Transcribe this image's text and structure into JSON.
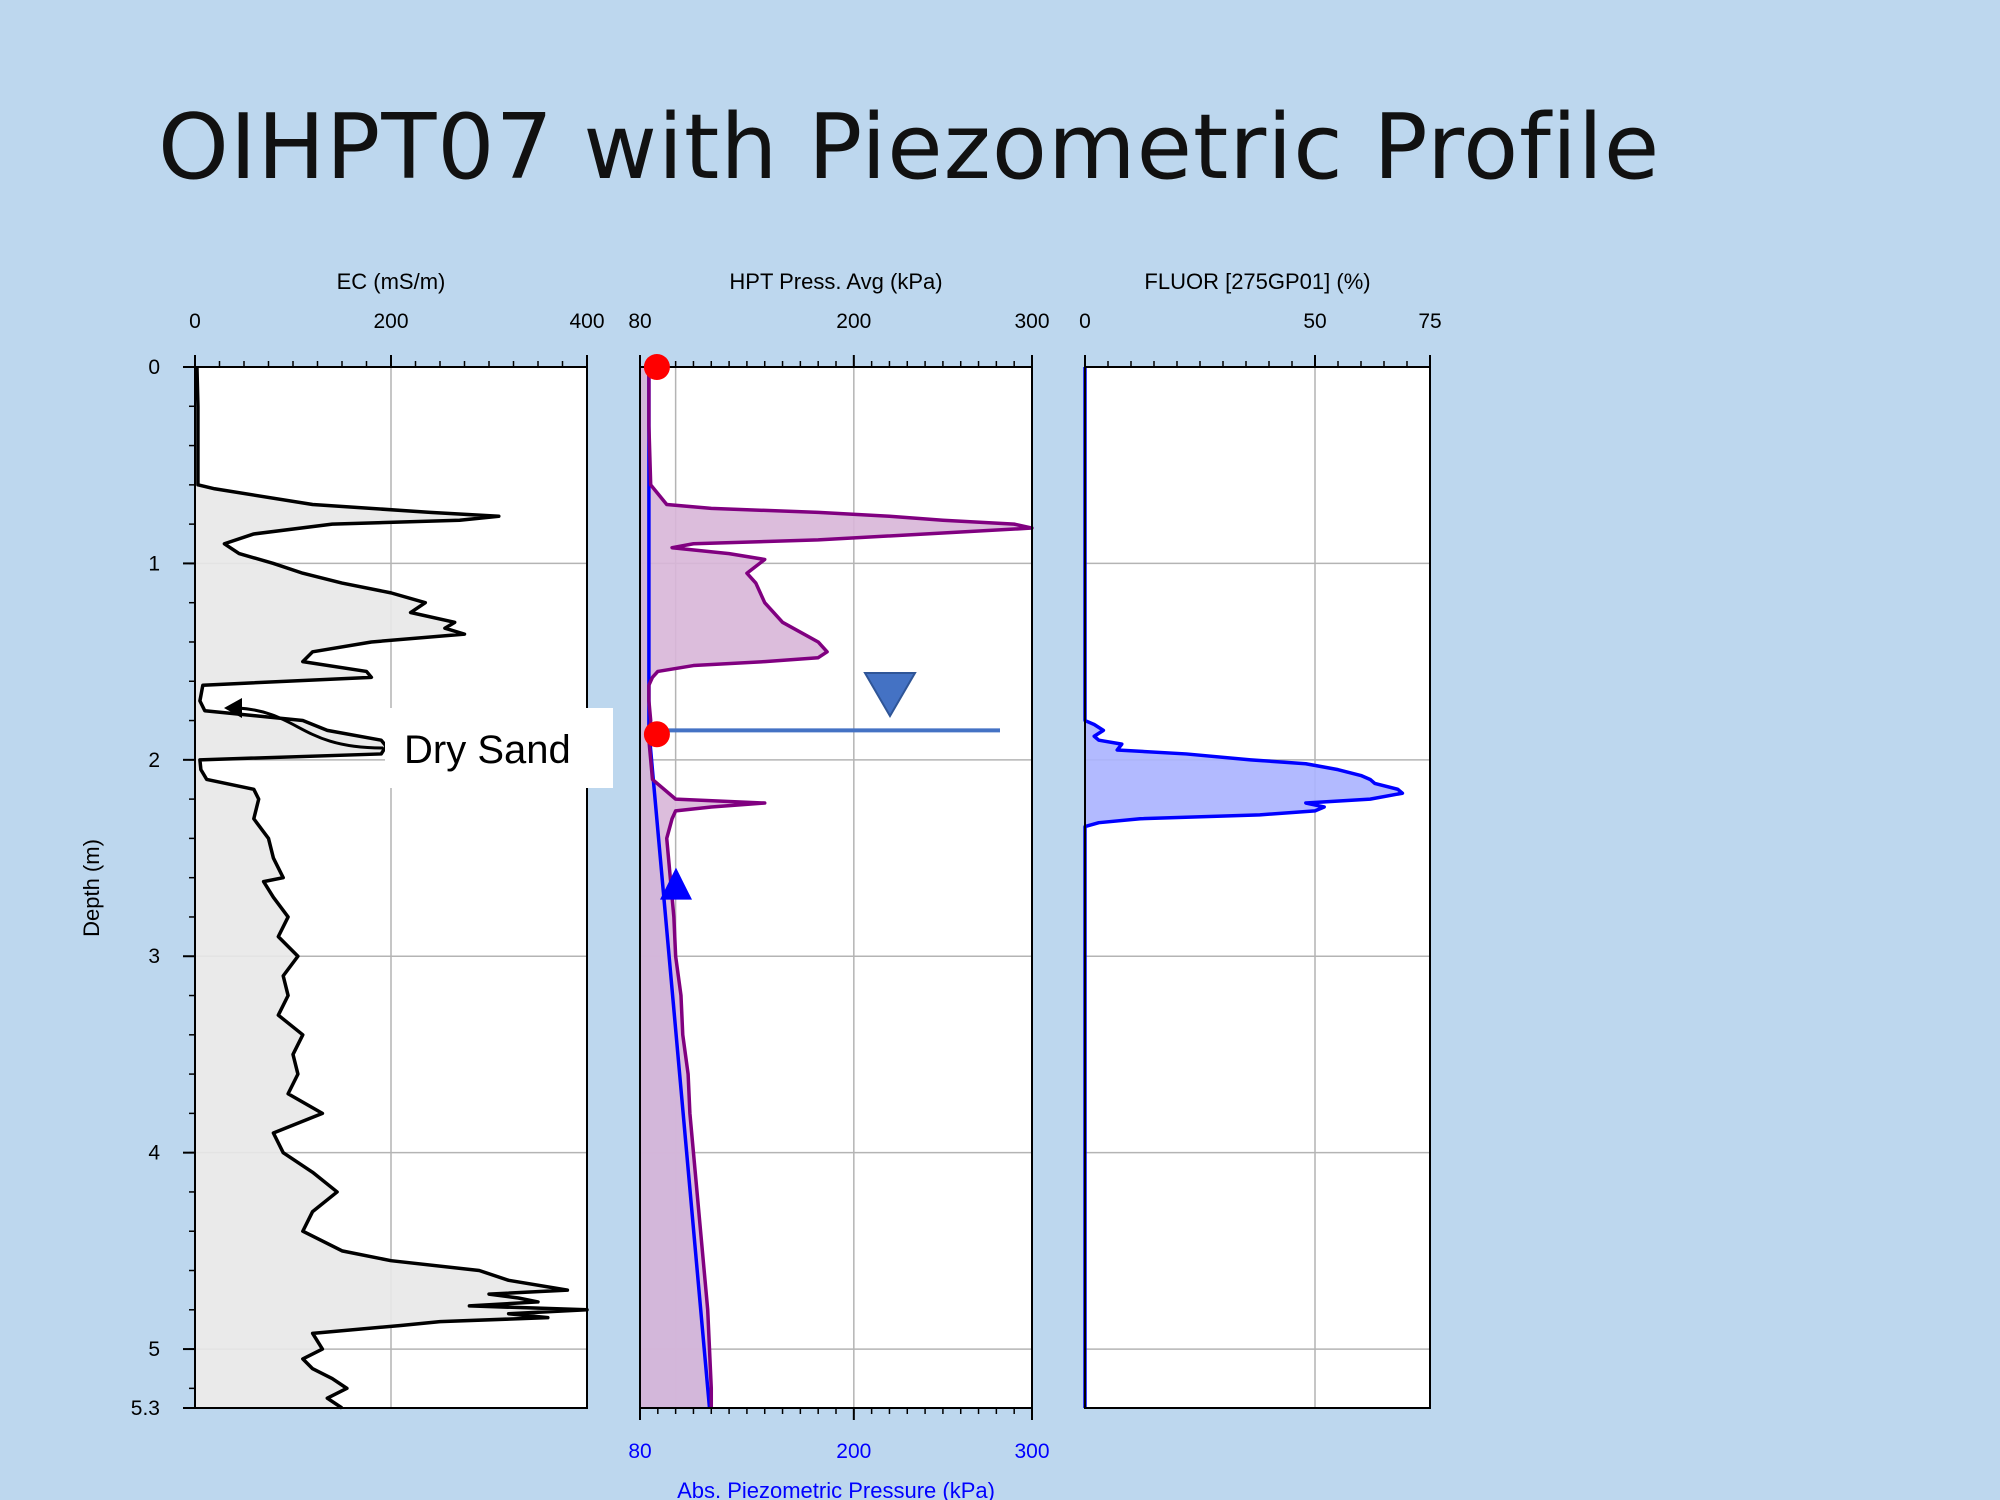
{
  "slide": {
    "title": "OIHPT07 with Piezometric Profile"
  },
  "annotation": {
    "text": "Dry Sand"
  },
  "colors": {
    "background": "#bdd7ee",
    "ec_line": "#000000",
    "ec_fill": "#e8e8e8",
    "hpt_line": "#800080",
    "hpt_fill": "#d8b6d8",
    "piezo_line": "#0000ff",
    "piezo_fill": "#9bb8e0",
    "fluor_line": "#0000ff",
    "fluor_fill": "#aab2ff",
    "marker": "#ff0000",
    "water_table": "#4472c4",
    "blue_axis_text": "#0000ff"
  },
  "chart_data": {
    "depth_axis": {
      "label": "Depth (m)",
      "range": [
        0,
        5.3
      ],
      "ticks": [
        "0",
        "1",
        "2",
        "3",
        "4",
        "5",
        "5.3"
      ]
    },
    "grid": true,
    "panels": [
      {
        "type": "area",
        "title": "EC (mS/m)",
        "xlim": [
          0,
          400
        ],
        "ticks": [
          "0",
          "200",
          "400"
        ],
        "series": [
          {
            "depth": [
              0,
              0.2,
              0.5,
              0.6,
              0.62,
              0.7,
              0.74,
              0.76,
              0.78,
              0.8,
              0.85,
              0.9,
              0.95,
              1.0,
              1.05,
              1.1,
              1.15,
              1.2,
              1.25,
              1.3,
              1.33,
              1.36,
              1.4,
              1.45,
              1.5,
              1.55,
              1.58,
              1.62,
              1.7,
              1.75,
              1.8,
              1.85,
              1.9,
              1.93,
              1.97,
              2.0,
              2.05,
              2.1,
              2.15,
              2.2,
              2.3,
              2.4,
              2.5,
              2.6,
              2.62,
              2.7,
              2.8,
              2.9,
              3.0,
              3.1,
              3.2,
              3.3,
              3.4,
              3.5,
              3.6,
              3.7,
              3.8,
              3.9,
              4.0,
              4.1,
              4.2,
              4.3,
              4.4,
              4.5,
              4.55,
              4.6,
              4.65,
              4.7,
              4.72,
              4.74,
              4.76,
              4.78,
              4.8,
              4.82,
              4.84,
              4.86,
              4.88,
              4.92,
              5.0,
              5.05,
              5.1,
              5.15,
              5.2,
              5.25,
              5.3
            ],
            "values": [
              2,
              3,
              3,
              3,
              20,
              120,
              240,
              310,
              270,
              140,
              60,
              30,
              45,
              80,
              110,
              150,
              200,
              235,
              220,
              265,
              255,
              275,
              180,
              120,
              110,
              175,
              180,
              8,
              5,
              10,
              110,
              135,
              190,
              195,
              190,
              5,
              6,
              12,
              60,
              65,
              60,
              75,
              80,
              90,
              70,
              80,
              95,
              85,
              105,
              90,
              95,
              85,
              110,
              100,
              105,
              95,
              130,
              80,
              90,
              120,
              145,
              120,
              110,
              150,
              200,
              290,
              320,
              380,
              300,
              330,
              350,
              280,
              400,
              320,
              360,
              250,
              210,
              120,
              130,
              110,
              120,
              140,
              155,
              135,
              150
            ]
          }
        ]
      },
      {
        "type": "area",
        "title": "HPT Press. Avg (kPa)",
        "xlim": [
          80,
          300
        ],
        "ticks": [
          "80",
          "200",
          "300"
        ],
        "bottom_axis": {
          "label": "Abs. Piezometric Pressure (kPa)",
          "ticks": [
            "80",
            "200",
            "300"
          ]
        },
        "series": [
          {
            "name": "HPT Press. Avg",
            "depth": [
              0,
              0.3,
              0.6,
              0.7,
              0.72,
              0.74,
              0.76,
              0.78,
              0.8,
              0.82,
              0.84,
              0.88,
              0.9,
              0.92,
              0.95,
              0.98,
              1.05,
              1.1,
              1.2,
              1.3,
              1.4,
              1.45,
              1.48,
              1.5,
              1.52,
              1.55,
              1.58,
              1.62,
              1.7,
              1.8,
              1.9,
              2.0,
              2.1,
              2.2,
              2.22,
              2.24,
              2.26,
              2.3,
              2.4,
              2.5,
              2.6,
              2.8,
              3.0,
              3.2,
              3.4,
              3.6,
              3.8,
              4.0,
              4.2,
              4.4,
              4.6,
              4.8,
              5.0,
              5.2,
              5.3
            ],
            "values": [
              85,
              85,
              86,
              95,
              120,
              180,
              220,
              250,
              290,
              300,
              260,
              180,
              110,
              98,
              130,
              150,
              140,
              145,
              150,
              160,
              180,
              185,
              180,
              150,
              110,
              90,
              87,
              85,
              85,
              86,
              85,
              86,
              87,
              100,
              150,
              120,
              100,
              98,
              95,
              96,
              97,
              99,
              100,
              103,
              104,
              107,
              108,
              110,
              112,
              114,
              116,
              118,
              119,
              120,
              120
            ]
          },
          {
            "name": "Abs. Piezometric Pressure",
            "depth": [
              0,
              1.85,
              5.3
            ],
            "values": [
              85,
              85,
              119
            ]
          }
        ],
        "markers": [
          {
            "depth": 0.0,
            "value": 85
          },
          {
            "depth": 1.87,
            "value": 85
          }
        ],
        "water_table_depth": 1.85,
        "piezo_marker_depth": 2.6
      },
      {
        "type": "area",
        "title": "FLUOR [275GP01] (%)",
        "xlim": [
          0,
          75
        ],
        "ticks": [
          "0",
          "50",
          "75"
        ],
        "series": [
          {
            "depth": [
              0,
              1.8,
              1.82,
              1.85,
              1.88,
              1.9,
              1.92,
              1.95,
              1.97,
              2.0,
              2.02,
              2.05,
              2.08,
              2.1,
              2.12,
              2.15,
              2.17,
              2.2,
              2.22,
              2.24,
              2.26,
              2.28,
              2.3,
              2.32,
              2.34,
              5.3
            ],
            "values": [
              0,
              0,
              2,
              4,
              2,
              3,
              8,
              7,
              22,
              36,
              48,
              55,
              60,
              62,
              63,
              68,
              69,
              62,
              48,
              52,
              50,
              38,
              12,
              3,
              0,
              0
            ]
          }
        ]
      }
    ]
  }
}
